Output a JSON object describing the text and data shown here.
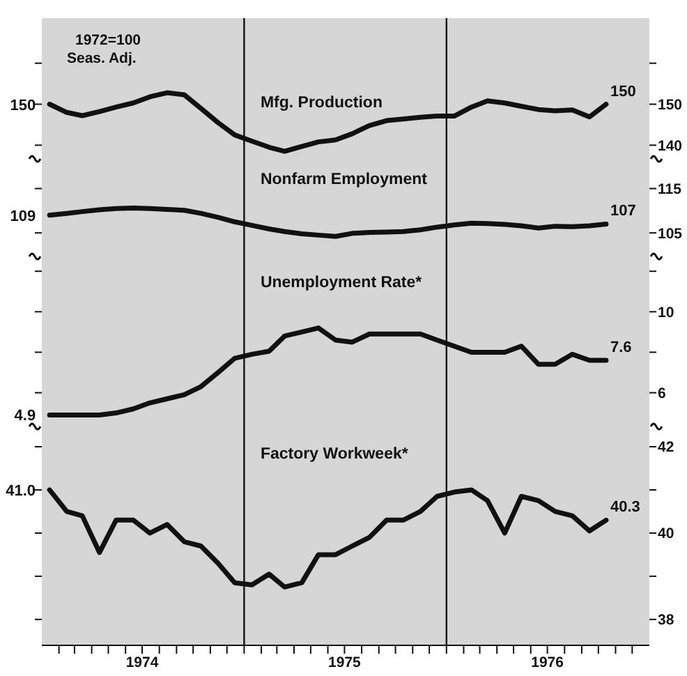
{
  "chart_data": [
    {
      "type": "line",
      "annotations": [
        "1972=100",
        "Seas. Adj."
      ],
      "legend": false,
      "grid": false,
      "tick_labels": "y",
      "xlim": [
        "1974-01-01",
        "1977-01-01"
      ],
      "ylim": [
        137,
        171
      ],
      "yticks": [
        {
          "value": 160,
          "label": null
        },
        150,
        140
      ],
      "x": [
        "1974-01-15",
        "1974-02-15",
        "1974-03-15",
        "1974-04-15",
        "1974-05-15",
        "1974-06-15",
        "1974-07-15",
        "1974-08-15",
        "1974-09-15",
        "1974-10-15",
        "1974-11-15",
        "1974-12-15",
        "1975-01-15",
        "1975-02-15",
        "1975-03-15",
        "1975-04-15",
        "1975-05-15",
        "1975-06-15",
        "1975-07-15",
        "1975-08-15",
        "1975-09-15",
        "1975-10-15",
        "1975-11-15",
        "1975-12-15",
        "1976-01-15",
        "1976-02-15",
        "1976-03-15",
        "1976-04-15",
        "1976-05-15",
        "1976-06-15",
        "1976-07-15",
        "1976-08-15",
        "1976-09-15",
        "1976-10-15"
      ],
      "ref_lines": [
        {
          "axis": "x",
          "value": "1975-01-01",
          "color": "#111111"
        },
        {
          "axis": "x",
          "value": "1976-01-01",
          "color": "#111111"
        }
      ],
      "series": [
        {
          "name": "Mfg. Production",
          "color": "#111111",
          "values": [
            150,
            148,
            147.2,
            148.2,
            149.3,
            150.3,
            151.8,
            152.8,
            152.3,
            149,
            145.5,
            142.5,
            141,
            139.5,
            138.5,
            139.7,
            140.8,
            141.3,
            142.8,
            144.8,
            146,
            146.4,
            146.8,
            147.1,
            147.1,
            149.3,
            150.8,
            150.3,
            149.5,
            148.7,
            148.4,
            148.6,
            146.9,
            150
          ],
          "value_labels": [
            "150",
            null,
            null,
            null,
            null,
            null,
            null,
            null,
            null,
            null,
            null,
            null,
            null,
            null,
            null,
            null,
            null,
            null,
            null,
            null,
            null,
            null,
            null,
            null,
            null,
            null,
            null,
            null,
            null,
            null,
            null,
            null,
            null,
            "150"
          ]
        }
      ]
    },
    {
      "type": "line",
      "legend": false,
      "grid": false,
      "tick_labels": "y",
      "xlim": [
        "1974-01-01",
        "1977-01-01"
      ],
      "ylim": [
        100,
        122
      ],
      "yticks": [
        115,
        105
      ],
      "x": [
        "1974-01-15",
        "1974-02-15",
        "1974-03-15",
        "1974-04-15",
        "1974-05-15",
        "1974-06-15",
        "1974-07-15",
        "1974-08-15",
        "1974-09-15",
        "1974-10-15",
        "1974-11-15",
        "1974-12-15",
        "1975-01-15",
        "1975-02-15",
        "1975-03-15",
        "1975-04-15",
        "1975-05-15",
        "1975-06-15",
        "1975-07-15",
        "1975-08-15",
        "1975-09-15",
        "1975-10-15",
        "1975-11-15",
        "1975-12-15",
        "1976-01-15",
        "1976-02-15",
        "1976-03-15",
        "1976-04-15",
        "1976-05-15",
        "1976-06-15",
        "1976-07-15",
        "1976-08-15",
        "1976-09-15",
        "1976-10-15"
      ],
      "ref_lines": [
        {
          "axis": "x",
          "value": "1975-01-01",
          "color": "#111111"
        },
        {
          "axis": "x",
          "value": "1976-01-01",
          "color": "#111111"
        }
      ],
      "series": [
        {
          "name": "Nonfarm Employment",
          "color": "#111111",
          "values": [
            109,
            109.4,
            109.8,
            110.2,
            110.5,
            110.6,
            110.5,
            110.3,
            110.1,
            109.4,
            108.5,
            107.5,
            106.7,
            105.9,
            105.3,
            104.8,
            104.5,
            104.2,
            104.9,
            105.1,
            105.2,
            105.3,
            105.7,
            106.3,
            106.8,
            107.2,
            107.1,
            106.9,
            106.6,
            106.1,
            106.5,
            106.4,
            106.6,
            107
          ],
          "value_labels": [
            "109",
            null,
            null,
            null,
            null,
            null,
            null,
            null,
            null,
            null,
            null,
            null,
            null,
            null,
            null,
            null,
            null,
            null,
            null,
            null,
            null,
            null,
            null,
            null,
            null,
            null,
            null,
            null,
            null,
            null,
            null,
            null,
            null,
            "107"
          ]
        }
      ]
    },
    {
      "type": "line",
      "legend": false,
      "grid": false,
      "tick_labels": "y",
      "xlim": [
        "1974-01-01",
        "1977-01-01"
      ],
      "ylim": [
        4.4,
        12.8
      ],
      "yticks": [
        {
          "value": 12,
          "label": null
        },
        10,
        {
          "value": 8,
          "label": null
        },
        6
      ],
      "x": [
        "1974-01-15",
        "1974-02-15",
        "1974-03-15",
        "1974-04-15",
        "1974-05-15",
        "1974-06-15",
        "1974-07-15",
        "1974-08-15",
        "1974-09-15",
        "1974-10-15",
        "1974-11-15",
        "1974-12-15",
        "1975-01-15",
        "1975-02-15",
        "1975-03-15",
        "1975-04-15",
        "1975-05-15",
        "1975-06-15",
        "1975-07-15",
        "1975-08-15",
        "1975-09-15",
        "1975-10-15",
        "1975-11-15",
        "1975-12-15",
        "1976-01-15",
        "1976-02-15",
        "1976-03-15",
        "1976-04-15",
        "1976-05-15",
        "1976-06-15",
        "1976-07-15",
        "1976-08-15",
        "1976-09-15",
        "1976-10-15"
      ],
      "ref_lines": [
        {
          "axis": "x",
          "value": "1975-01-01",
          "color": "#111111"
        },
        {
          "axis": "x",
          "value": "1976-01-01",
          "color": "#111111"
        }
      ],
      "series": [
        {
          "name": "Unemployment Rate*",
          "color": "#111111",
          "values": [
            4.9,
            4.9,
            4.9,
            4.9,
            5.0,
            5.2,
            5.5,
            5.7,
            5.9,
            6.3,
            7.0,
            7.7,
            7.9,
            8.05,
            8.8,
            9.0,
            9.2,
            8.6,
            8.5,
            8.9,
            8.9,
            8.9,
            8.9,
            8.6,
            8.3,
            8.0,
            8.0,
            8.0,
            8.3,
            7.4,
            7.4,
            7.9,
            7.6,
            7.6
          ],
          "value_labels": [
            "4.9",
            null,
            null,
            null,
            null,
            null,
            null,
            null,
            null,
            null,
            null,
            null,
            null,
            null,
            null,
            null,
            null,
            null,
            null,
            null,
            null,
            null,
            null,
            null,
            null,
            null,
            null,
            null,
            null,
            null,
            null,
            null,
            null,
            "7.6"
          ]
        }
      ]
    },
    {
      "type": "line",
      "legend": false,
      "grid": false,
      "xlim": [
        "1974-01-01",
        "1977-01-01"
      ],
      "ylim": [
        37.4,
        42.5
      ],
      "yticks": [
        42,
        {
          "value": 41,
          "label": null
        },
        40,
        {
          "value": 39,
          "label": null
        },
        38
      ],
      "xticks": [
        {
          "value": "1974-02-01",
          "label": null
        },
        {
          "value": "1974-03-01",
          "label": null
        },
        {
          "value": "1974-04-01",
          "label": null
        },
        {
          "value": "1974-05-01",
          "label": null
        },
        {
          "value": "1974-06-01",
          "label": null
        },
        {
          "value": "1974-07-01",
          "label": "1974"
        },
        {
          "value": "1974-08-01",
          "label": null
        },
        {
          "value": "1974-09-01",
          "label": null
        },
        {
          "value": "1974-10-01",
          "label": null
        },
        {
          "value": "1974-11-01",
          "label": null
        },
        {
          "value": "1974-12-01",
          "label": null
        },
        {
          "value": "1975-01-01",
          "label": null
        },
        {
          "value": "1975-02-01",
          "label": null
        },
        {
          "value": "1975-03-01",
          "label": null
        },
        {
          "value": "1975-04-01",
          "label": null
        },
        {
          "value": "1975-05-01",
          "label": null
        },
        {
          "value": "1975-06-01",
          "label": null
        },
        {
          "value": "1975-07-01",
          "label": "1975"
        },
        {
          "value": "1975-08-01",
          "label": null
        },
        {
          "value": "1975-09-01",
          "label": null
        },
        {
          "value": "1975-10-01",
          "label": null
        },
        {
          "value": "1975-11-01",
          "label": null
        },
        {
          "value": "1975-12-01",
          "label": null
        },
        {
          "value": "1976-01-01",
          "label": null
        },
        {
          "value": "1976-02-01",
          "label": null
        },
        {
          "value": "1976-03-01",
          "label": null
        },
        {
          "value": "1976-04-01",
          "label": null
        },
        {
          "value": "1976-05-01",
          "label": null
        },
        {
          "value": "1976-06-01",
          "label": null
        },
        {
          "value": "1976-07-01",
          "label": "1976"
        },
        {
          "value": "1976-08-01",
          "label": null
        },
        {
          "value": "1976-09-01",
          "label": null
        },
        {
          "value": "1976-10-01",
          "label": null
        },
        {
          "value": "1976-11-01",
          "label": null
        },
        {
          "value": "1976-12-01",
          "label": null
        }
      ],
      "x": [
        "1974-01-15",
        "1974-02-15",
        "1974-03-15",
        "1974-04-15",
        "1974-05-15",
        "1974-06-15",
        "1974-07-15",
        "1974-08-15",
        "1974-09-15",
        "1974-10-15",
        "1974-11-15",
        "1974-12-15",
        "1975-01-15",
        "1975-02-15",
        "1975-03-15",
        "1975-04-15",
        "1975-05-15",
        "1975-06-15",
        "1975-07-15",
        "1975-08-15",
        "1975-09-15",
        "1975-10-15",
        "1975-11-15",
        "1975-12-15",
        "1976-01-15",
        "1976-02-15",
        "1976-03-15",
        "1976-04-15",
        "1976-05-15",
        "1976-06-15",
        "1976-07-15",
        "1976-08-15",
        "1976-09-15",
        "1976-10-15"
      ],
      "ref_lines": [
        {
          "axis": "x",
          "value": "1975-01-01",
          "color": "#111111"
        },
        {
          "axis": "x",
          "value": "1976-01-01",
          "color": "#111111"
        }
      ],
      "series": [
        {
          "name": "Factory Workweek*",
          "color": "#111111",
          "values": [
            41.0,
            40.5,
            40.4,
            39.55,
            40.3,
            40.3,
            40.0,
            40.2,
            39.8,
            39.7,
            39.3,
            38.85,
            38.8,
            39.05,
            38.75,
            38.85,
            39.5,
            39.5,
            39.7,
            39.9,
            40.3,
            40.3,
            40.5,
            40.85,
            40.95,
            41.0,
            40.75,
            40.0,
            40.85,
            40.75,
            40.5,
            40.4,
            40.05,
            40.3
          ],
          "value_labels": [
            "41.0",
            null,
            null,
            null,
            null,
            null,
            null,
            null,
            null,
            null,
            null,
            null,
            null,
            null,
            null,
            null,
            null,
            null,
            null,
            null,
            null,
            null,
            null,
            null,
            null,
            null,
            null,
            null,
            null,
            null,
            null,
            null,
            null,
            "40.3"
          ]
        }
      ]
    }
  ]
}
